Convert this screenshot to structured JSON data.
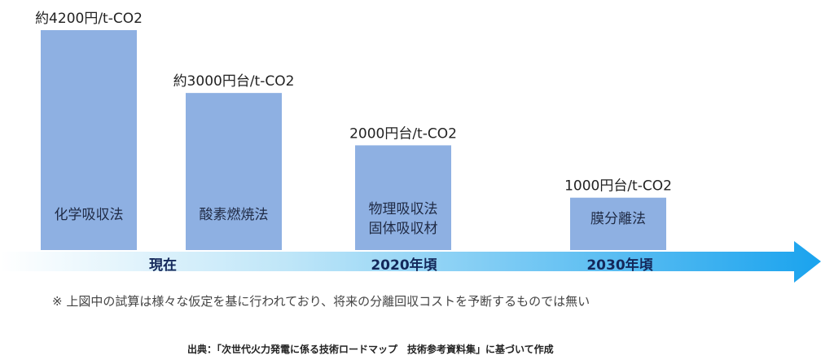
{
  "chart_data": {
    "type": "bar",
    "categories": [
      "現在",
      "",
      "2020年頃",
      "2030年頃"
    ],
    "bar_labels": [
      [
        "化学吸収法"
      ],
      [
        "酸素燃焼法"
      ],
      [
        "物理吸収法",
        "固体吸収材"
      ],
      [
        "膜分離法"
      ]
    ],
    "values": [
      4200,
      3000,
      2000,
      1000
    ],
    "value_labels": [
      "約4200円/t-CO2",
      "約3000円台/t-CO2",
      "2000円台/t-CO2",
      "1000円台/t-CO2"
    ],
    "ylim": [
      0,
      4500
    ],
    "timeline_labels": [
      "現在",
      "2020年頃",
      "2030年頃"
    ],
    "colors": {
      "bar": "#8eb0e2",
      "arrow_start": "#ffffff",
      "arrow_end": "#1aa3ee",
      "timeline_text": "#14285a"
    }
  },
  "note": "※ 上図中の試算は様々な仮定を基に行われており、将来の分離回収コストを予断するものでは無い",
  "source": "出典：「次世代火力発電に係る技術ロードマップ　技術参考資料集」に基づいて作成"
}
